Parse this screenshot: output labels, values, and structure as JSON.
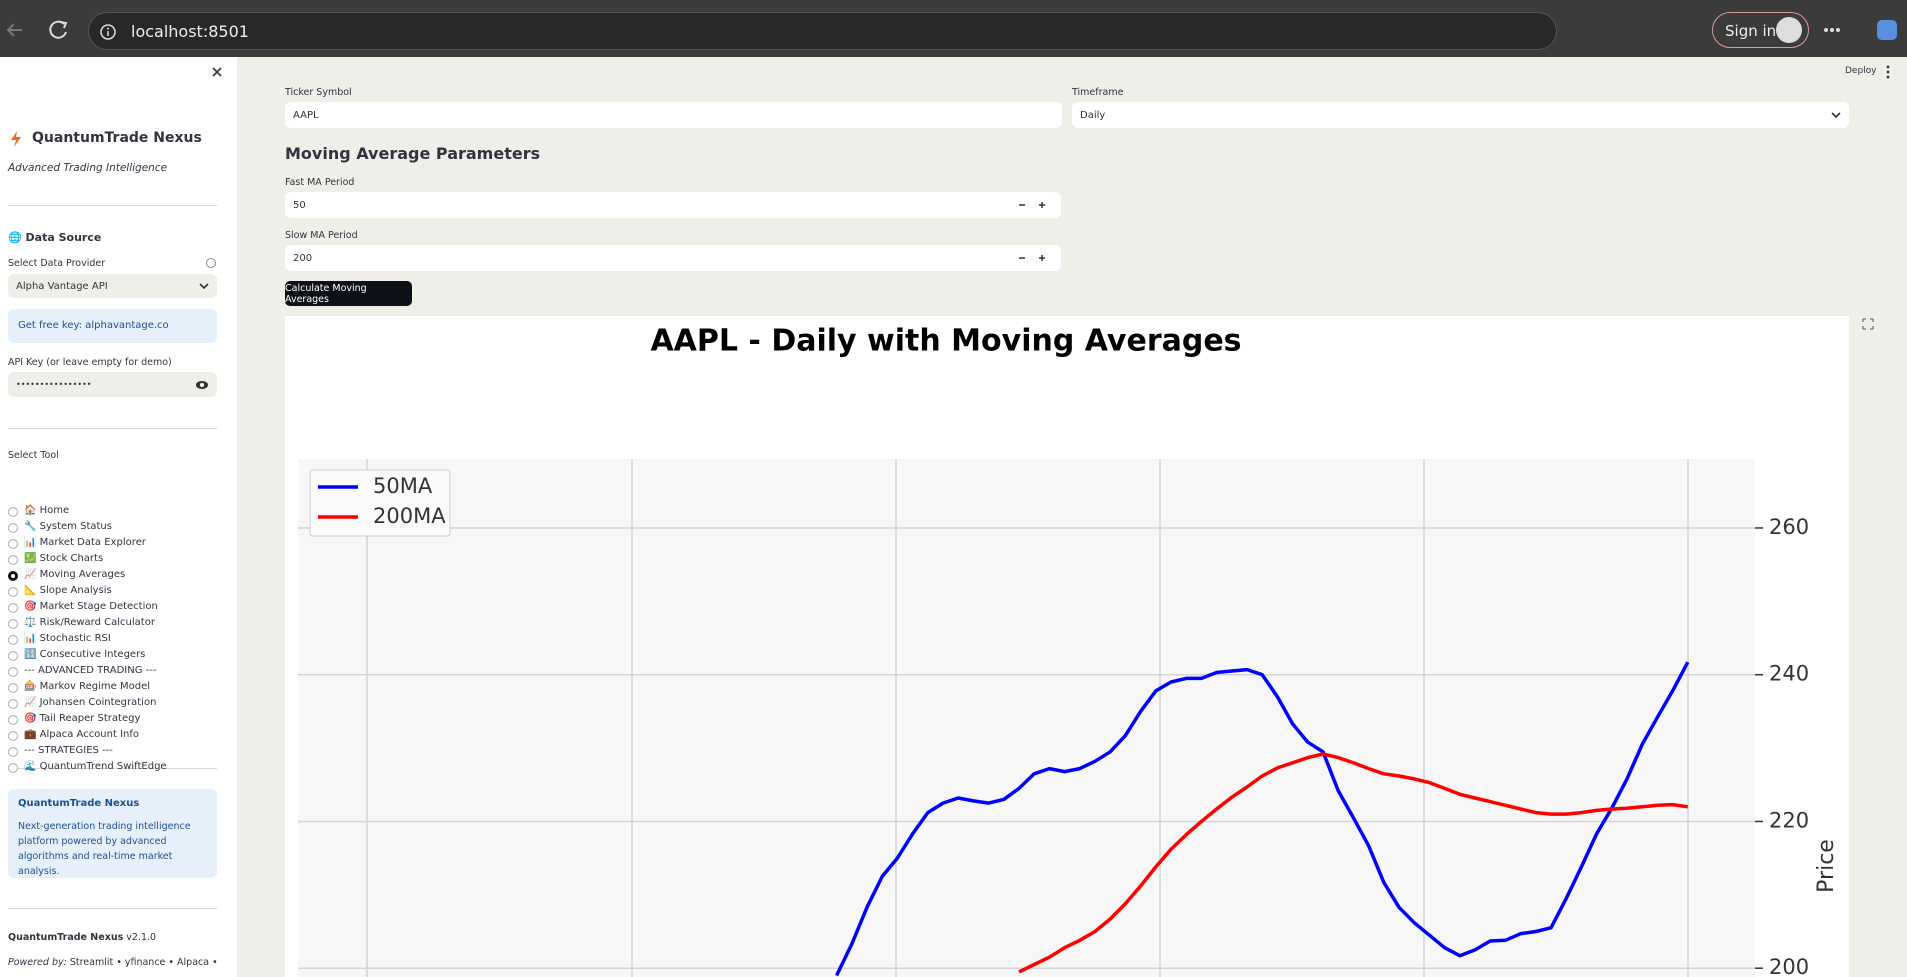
{
  "browser": {
    "url": "localhost:8501",
    "sign_in": "Sign in"
  },
  "sidebar": {
    "title": "QuantumTrade Nexus",
    "tagline": "Advanced Trading Intelligence",
    "data_source_heading": "🌐 Data Source",
    "provider_label": "Select Data Provider",
    "provider": "Alpha Vantage API",
    "info": "Get free key: alphavantage.co",
    "api_key_label": "API Key (or leave empty for demo)",
    "api_key": "••••••••••••••••",
    "tool_label": "Select Tool",
    "tools": [
      "🏠 Home",
      "🔧 System Status",
      "📊 Market Data Explorer",
      "💹 Stock Charts",
      "📈 Moving Averages",
      "📐 Slope Analysis",
      "🎯 Market Stage Detection",
      "⚖️ Risk/Reward Calculator",
      "📊 Stochastic RSI",
      "🔢 Consecutive Integers",
      "--- ADVANCED TRADING ---",
      "🎰 Markov Regime Model",
      "📈 Johansen Cointegration",
      "🎯 Tail Reaper Strategy",
      "💼 Alpaca Account Info",
      "--- STRATEGIES ---",
      "🌊 QuantumTrend SwiftEdge"
    ],
    "about_title": "QuantumTrade Nexus",
    "about_text": "Next-generation trading intelligence platform powered by advanced algorithms and real-time market analysis.",
    "version_name": "QuantumTrade Nexus",
    "version": "v2.1.0",
    "powered_by_label": "Powered by:",
    "powered_by": "Streamlit • yfinance • Alpaca •"
  },
  "main": {
    "deploy": "Deploy",
    "ticker_label": "Ticker Symbol",
    "ticker": "AAPL",
    "timeframe_label": "Timeframe",
    "timeframe": "Daily",
    "ma_heading": "Moving Average Parameters",
    "fast_label": "Fast MA Period",
    "fast": "50",
    "slow_label": "Slow MA Period",
    "slow": "200",
    "button": "Calculate Moving Averages"
  },
  "chart_data": {
    "type": "line",
    "title": "AAPL - Daily with Moving Averages",
    "y_label": "Price",
    "categories": [
      null,
      null,
      null,
      null,
      null,
      null,
      null,
      null,
      null,
      null,
      null,
      null,
      null,
      null,
      null,
      null,
      null,
      null,
      null,
      null,
      null,
      null,
      null,
      null,
      null,
      null,
      null,
      null,
      null,
      null,
      null,
      null,
      null,
      null,
      null,
      null,
      null,
      null,
      null,
      null,
      null,
      null,
      null,
      null,
      null,
      null,
      null,
      null,
      null,
      null,
      null,
      null,
      null,
      null,
      null,
      null,
      null
    ],
    "series": [
      {
        "name": "50MA",
        "color": "#0000ff",
        "values": [
          199,
          203.3,
          208.3,
          212.5,
          215,
          218.3,
          221.2,
          222.5,
          223.2,
          222.8,
          222.5,
          223,
          224.5,
          226.5,
          227.2,
          226.8,
          227.2,
          228.2,
          229.5,
          231.7,
          235,
          237.8,
          239,
          239.5,
          239.5,
          240.3,
          240.5,
          240.7,
          240,
          237,
          233.3,
          230.8,
          229.5,
          224.2,
          220.5,
          216.7,
          211.7,
          208.3,
          206.2,
          204.5,
          202.8,
          201.7,
          202.5,
          203.7,
          203.8,
          204.7,
          205,
          205.5,
          209.5,
          213.8,
          218.3,
          221.8,
          225.8,
          230.5,
          234.2,
          237.8,
          241.7
        ]
      },
      {
        "name": "200MA",
        "color": "#ff0000",
        "values": [
          null,
          null,
          null,
          null,
          null,
          null,
          null,
          null,
          null,
          null,
          null,
          null,
          199.5,
          200.5,
          201.5,
          202.8,
          203.8,
          205,
          206.7,
          208.8,
          211.2,
          213.8,
          216.2,
          218.2,
          220,
          221.7,
          223.3,
          224.7,
          226.2,
          227.3,
          228,
          228.7,
          229.2,
          228.7,
          228,
          227.2,
          226.5,
          226.2,
          225.8,
          225.3,
          224.5,
          223.7,
          223.2,
          222.7,
          222.2,
          221.7,
          221.2,
          221,
          221,
          221.2,
          221.5,
          221.7,
          221.8,
          222,
          222.2,
          222.3,
          222
        ]
      }
    ],
    "ylim": [
      198.8,
      269.4
    ],
    "yticks": [
      200,
      220,
      240,
      260
    ],
    "grid": true,
    "legend": "upper left"
  }
}
